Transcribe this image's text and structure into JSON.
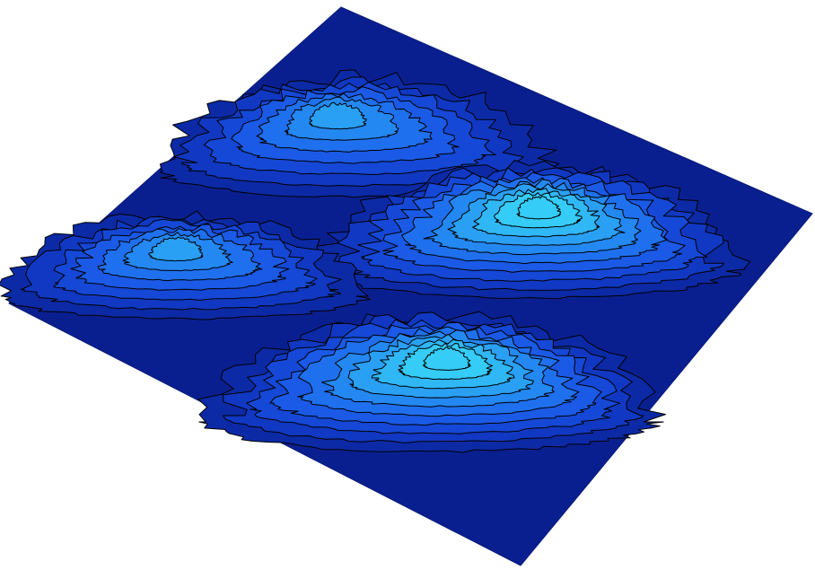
{
  "scene": {
    "colors": {
      "background": "#ffffff",
      "base": "#0a1f8f",
      "contour_line": "#000000",
      "levels": [
        "#0a1f8f",
        "#0c2aa6",
        "#1038c2",
        "#1548d6",
        "#1a5ae6",
        "#1f70ee",
        "#2488f2",
        "#2aa0f4",
        "#30b8f6",
        "#36ccf8"
      ]
    },
    "peaks": [
      {
        "name": "peak-back-left",
        "levels": 7
      },
      {
        "name": "peak-back-right",
        "levels": 10
      },
      {
        "name": "peak-front-left",
        "levels": 7
      },
      {
        "name": "peak-front-right",
        "levels": 10
      }
    ]
  }
}
